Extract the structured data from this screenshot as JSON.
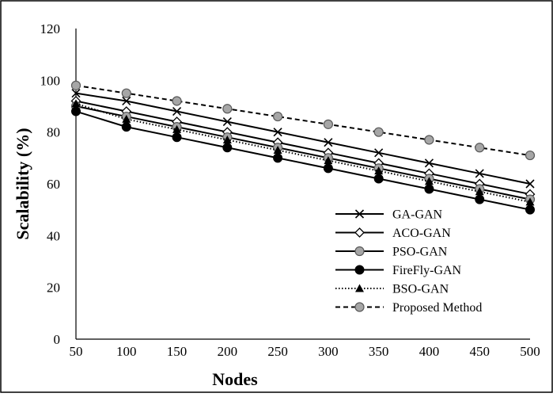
{
  "chart_data": {
    "type": "line",
    "title": "",
    "xlabel": "Nodes",
    "ylabel": "Scalability (%)",
    "x": [
      50,
      100,
      150,
      200,
      250,
      300,
      350,
      400,
      450,
      500
    ],
    "xlim": [
      50,
      500
    ],
    "ylim": [
      0,
      120
    ],
    "yticks": [
      0,
      20,
      40,
      60,
      80,
      100,
      120
    ],
    "grid": false,
    "legend_position": "bottom-right",
    "series": [
      {
        "name": "GA-GAN",
        "marker": "x",
        "line": "solid",
        "color": "#000000",
        "values": [
          95,
          92,
          88,
          84,
          80,
          76,
          72,
          68,
          64,
          60
        ]
      },
      {
        "name": "ACO-GAN",
        "marker": "diamond-open",
        "line": "solid",
        "color": "#000000",
        "values": [
          92,
          88,
          84,
          80,
          76,
          72,
          68,
          64,
          60,
          56
        ]
      },
      {
        "name": "PSO-GAN",
        "marker": "circle-gray",
        "line": "solid",
        "color": "#000000",
        "values": [
          90,
          86,
          82,
          78,
          74,
          70,
          66,
          62,
          58,
          54
        ]
      },
      {
        "name": "FireFly-GAN",
        "marker": "circle-filled",
        "line": "solid",
        "color": "#000000",
        "values": [
          88,
          82,
          78,
          74,
          70,
          66,
          62,
          58,
          54,
          50
        ]
      },
      {
        "name": "BSO-GAN",
        "marker": "triangle",
        "line": "dotted",
        "color": "#000000",
        "values": [
          91,
          85,
          81,
          77,
          73,
          69,
          65,
          61,
          57,
          53
        ]
      },
      {
        "name": "Proposed Method",
        "marker": "circle-gray",
        "line": "dashed",
        "color": "#000000",
        "values": [
          98,
          95,
          92,
          89,
          86,
          83,
          80,
          77,
          74,
          71
        ]
      }
    ]
  }
}
